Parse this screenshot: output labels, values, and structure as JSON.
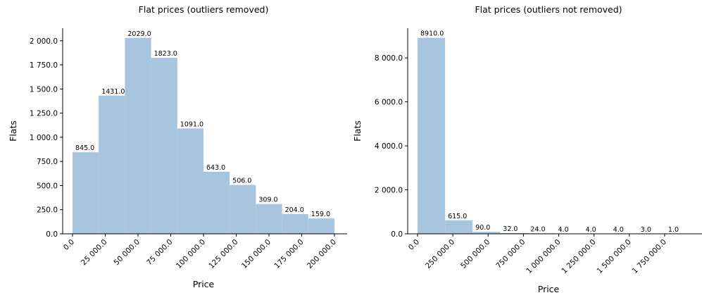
{
  "chart_data": [
    {
      "type": "bar",
      "title": "Flat prices (outliers removed)",
      "xlabel": "Price",
      "ylabel": "Flats",
      "xlim": [
        0,
        200000
      ],
      "ylim": [
        0,
        2130
      ],
      "bin_edges": [
        0,
        20000,
        40000,
        60000,
        80000,
        100000,
        120000,
        140000,
        160000,
        180000,
        200000
      ],
      "values": [
        845.0,
        1431.0,
        2029.0,
        1823.0,
        1091.0,
        643.0,
        506.0,
        309.0,
        204.0,
        159.0
      ],
      "data_labels": [
        "845.0",
        "1431.0",
        "2029.0",
        "1823.0",
        "1091.0",
        "643.0",
        "506.0",
        "309.0",
        "204.0",
        "159.0"
      ],
      "xticks": [
        0,
        25000,
        50000,
        75000,
        100000,
        125000,
        150000,
        175000,
        200000
      ],
      "xtick_labels": [
        "0.0",
        "25 000.0",
        "50 000.0",
        "75 000.0",
        "100 000.0",
        "125 000.0",
        "150 000.0",
        "175 000.0",
        "200 000.0"
      ],
      "yticks": [
        0,
        250,
        500,
        750,
        1000,
        1250,
        1500,
        1750,
        2000
      ],
      "ytick_labels": [
        "0.0",
        "250.0",
        "500.0",
        "750.0",
        "1 000.0",
        "1 250.0",
        "1 500.0",
        "1 750.0",
        "2 000.0"
      ],
      "bar_color": "#a8c5e0",
      "grid": false
    },
    {
      "type": "bar",
      "title": "Flat prices (outliers not removed)",
      "xlabel": "Price",
      "ylabel": "Flats",
      "xlim": [
        0,
        1950000
      ],
      "ylim": [
        0,
        9350
      ],
      "bin_edges": [
        0,
        195000,
        390000,
        585000,
        780000,
        975000,
        1170000,
        1365000,
        1560000,
        1755000,
        1950000
      ],
      "values": [
        8910.0,
        615.0,
        90.0,
        32.0,
        24.0,
        4.0,
        4.0,
        4.0,
        3.0,
        1.0
      ],
      "data_labels": [
        "8910.0",
        "615.0",
        "90.0",
        "32.0",
        "24.0",
        "4.0",
        "4.0",
        "4.0",
        "3.0",
        "1.0"
      ],
      "xticks": [
        0,
        250000,
        500000,
        750000,
        1000000,
        1250000,
        1500000,
        1750000
      ],
      "xtick_labels": [
        "0.0",
        "250 000.0",
        "500 000.0",
        "750 000.0",
        "1 000 000.0",
        "1 250 000.0",
        "1 500 000.0",
        "1 750 000.0"
      ],
      "yticks": [
        0,
        2000,
        4000,
        6000,
        8000
      ],
      "ytick_labels": [
        "0.0",
        "2 000.0",
        "4 000.0",
        "6 000.0",
        "8 000.0"
      ],
      "bar_color": "#a8c5e0",
      "grid": false
    }
  ]
}
